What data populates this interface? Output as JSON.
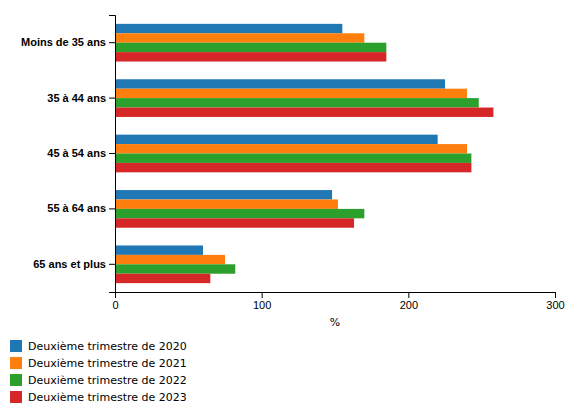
{
  "chart_data": {
    "type": "bar",
    "orientation": "horizontal",
    "categories": [
      "65 ans et plus",
      "55 à 64 ans",
      "45 à 54 ans",
      "35 à 44 ans",
      "Moins de 35 ans"
    ],
    "series": [
      {
        "name": "Deuxième trimestre de 2020",
        "values": [
          60,
          148,
          220,
          225,
          155
        ]
      },
      {
        "name": "Deuxième trimestre de 2021",
        "values": [
          75,
          152,
          240,
          240,
          170
        ]
      },
      {
        "name": "Deuxième trimestre de 2022",
        "values": [
          82,
          170,
          243,
          248,
          185
        ]
      },
      {
        "name": "Deuxième trimestre de 2023",
        "values": [
          65,
          163,
          243,
          258,
          185
        ]
      }
    ],
    "xlabel": "%",
    "xlim": [
      0,
      300
    ],
    "xticks": [
      0,
      100,
      200,
      300
    ],
    "grid": false,
    "legend": "bottom"
  }
}
